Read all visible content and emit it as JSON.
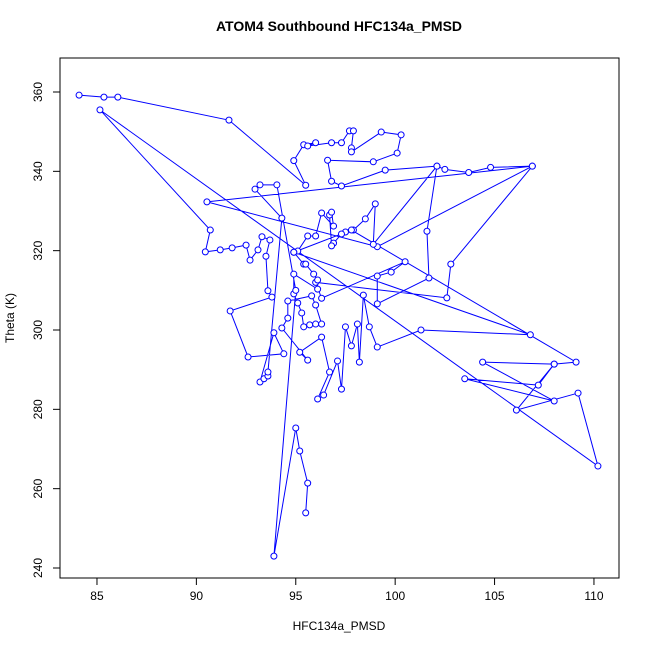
{
  "chart_data": {
    "type": "line",
    "title": "ATOM4 Southbound HFC134a_PMSD",
    "xlabel": "HFC134a_PMSD",
    "ylabel": "Theta (K)",
    "xlim": [
      83.14,
      111.26
    ],
    "ylim": [
      237.48,
      368.57
    ],
    "xticks": [
      85,
      90,
      95,
      100,
      105,
      110
    ],
    "yticks": [
      240,
      260,
      280,
      300,
      320,
      340,
      360
    ],
    "color": "#0000ff",
    "x": [
      84.1,
      85.35,
      86.05,
      91.64,
      95.5,
      94.9,
      95.4,
      96.0,
      95.6,
      96.8,
      97.3,
      97.7,
      97.9,
      97.8,
      97.8,
      99.3,
      100.3,
      100.1,
      98.9,
      96.6,
      96.8,
      97.3,
      99.5,
      102.1,
      102.5,
      103.7,
      104.8,
      106.9,
      99.1,
      90.53,
      106.9,
      102.8,
      102.6,
      96.0,
      96.3,
      100.5,
      99.8,
      99.1,
      99.1,
      101.7,
      101.6,
      102.1,
      98.9,
      99.0,
      98.5,
      97.9,
      97.5,
      97.3,
      96.9,
      96.8,
      96.7,
      96.8,
      96.9,
      96.3,
      96.0,
      95.6,
      95.1,
      94.9,
      95.4,
      95.5,
      95.9,
      96.1,
      96.1,
      94.9,
      94.9,
      95.1,
      95.3,
      95.4,
      95.7,
      96.0,
      96.3,
      96.0,
      95.8,
      94.6,
      94.6,
      94.3,
      95.6,
      95.2,
      96.3,
      96.7,
      96.1,
      96.4,
      97.1,
      97.3,
      97.5,
      97.8,
      98.1,
      98.2,
      98.4,
      98.7,
      99.1,
      101.3,
      106.8,
      94.9,
      97.8,
      109.1,
      108.0,
      104.4,
      108.0,
      103.5,
      107.2,
      108.0,
      106.1,
      109.2,
      110.2,
      85.15,
      90.7,
      90.45,
      91.2,
      91.8,
      92.5,
      92.7,
      93.1,
      93.3,
      93.7,
      93.5,
      93.6,
      93.8,
      91.7,
      92.6,
      94.4,
      93.9,
      93.2,
      93.4,
      93.6,
      93.6,
      94.3,
      92.95,
      93.2,
      94.05,
      95.0,
      93.9,
      95.0,
      95.2,
      95.6,
      95.5
    ],
    "y": [
      359.2,
      358.7,
      358.7,
      352.9,
      336.5,
      342.7,
      346.7,
      347.2,
      346.4,
      347.2,
      347.2,
      350.2,
      350.2,
      345.9,
      344.9,
      349.9,
      349.2,
      344.6,
      342.4,
      342.8,
      337.5,
      336.3,
      340.3,
      341.3,
      340.5,
      339.7,
      341.0,
      341.3,
      321.0,
      332.3,
      341.3,
      316.6,
      308.1,
      312.0,
      308.0,
      317.2,
      314.6,
      313.6,
      306.6,
      313.1,
      324.9,
      341.3,
      321.6,
      331.8,
      328.0,
      325.2,
      324.7,
      324.2,
      321.9,
      321.2,
      329.0,
      329.7,
      326.2,
      329.5,
      323.7,
      323.7,
      319.9,
      319.6,
      316.6,
      316.6,
      314.1,
      312.6,
      310.3,
      314.1,
      309.1,
      306.8,
      304.3,
      300.8,
      301.3,
      301.5,
      301.5,
      306.3,
      308.6,
      307.3,
      303.0,
      300.5,
      292.4,
      294.4,
      298.2,
      289.4,
      282.6,
      283.6,
      292.2,
      285.1,
      300.8,
      296.0,
      301.5,
      291.9,
      308.8,
      300.8,
      295.7,
      300.0,
      298.8,
      319.6,
      325.2,
      291.9,
      291.4,
      291.9,
      282.1,
      287.7,
      286.1,
      291.4,
      279.8,
      284.1,
      265.7,
      355.5,
      325.2,
      319.7,
      320.2,
      320.7,
      321.4,
      317.6,
      320.2,
      323.5,
      322.7,
      318.6,
      309.9,
      308.3,
      304.8,
      293.2,
      294.0,
      299.3,
      286.9,
      287.7,
      288.4,
      289.4,
      328.2,
      335.5,
      336.6,
      336.6,
      310.0,
      243.0,
      275.3,
      269.5,
      261.4,
      253.9
    ]
  }
}
